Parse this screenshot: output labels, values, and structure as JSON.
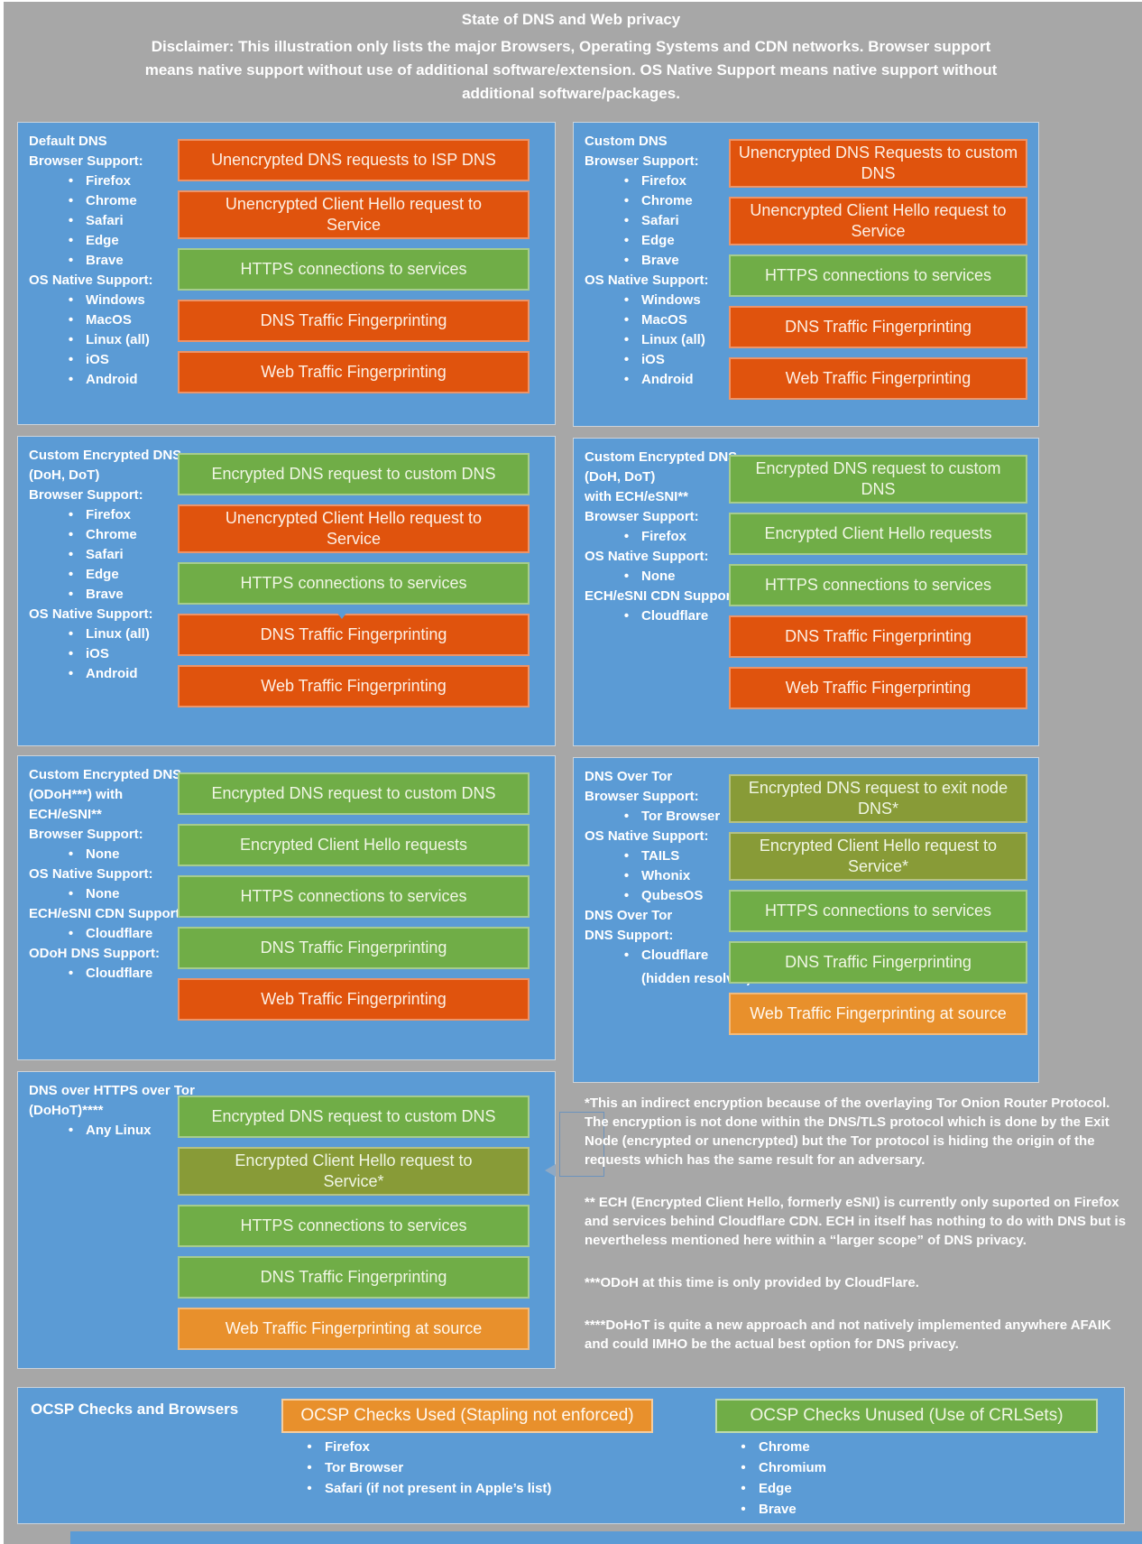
{
  "colors": {
    "background": "#a7a7a7",
    "panel_blue": "#5b9bd5",
    "bar_green": "#70ad47",
    "bar_olive": "#889b37",
    "bar_dark_orange": "#e0530d",
    "bar_light_orange": "#e8902c"
  },
  "header": {
    "title": "State of DNS and Web privacy",
    "disclaimer": "Disclaimer: This illustration only lists the major Browsers, Operating Systems and CDN networks. Browser support means native support without use of additional software/extension. OS Native Support means native support without additional software/packages."
  },
  "panels": [
    {
      "id": "default-dns",
      "left": [
        {
          "style": "h",
          "text": "Default DNS"
        },
        {
          "style": "h",
          "text": "Browser Support:"
        },
        {
          "style": "b",
          "text": "Firefox"
        },
        {
          "style": "b",
          "text": "Chrome"
        },
        {
          "style": "b",
          "text": "Safari"
        },
        {
          "style": "b",
          "text": "Edge"
        },
        {
          "style": "b",
          "text": "Brave"
        },
        {
          "style": "h",
          "text": "OS Native Support:"
        },
        {
          "style": "b",
          "text": "Windows"
        },
        {
          "style": "b",
          "text": "MacOS"
        },
        {
          "style": "b",
          "text": "Linux (all)"
        },
        {
          "style": "b",
          "text": "iOS"
        },
        {
          "style": "b",
          "text": "Android"
        }
      ],
      "bars": [
        {
          "text": "Unencrypted DNS requests to ISP DNS",
          "color": "dark_orange"
        },
        {
          "text": "Unencrypted Client Hello request to\nService",
          "color": "dark_orange"
        },
        {
          "text": "HTTPS connections to services",
          "color": "green"
        },
        {
          "text": "DNS Traffic Fingerprinting",
          "color": "dark_orange"
        },
        {
          "text": "Web Traffic Fingerprinting",
          "color": "dark_orange"
        }
      ]
    },
    {
      "id": "custom-dns",
      "left": [
        {
          "style": "h",
          "text": "Custom DNS"
        },
        {
          "style": "h",
          "text": "Browser Support:"
        },
        {
          "style": "b",
          "text": "Firefox"
        },
        {
          "style": "b",
          "text": "Chrome"
        },
        {
          "style": "b",
          "text": "Safari"
        },
        {
          "style": "b",
          "text": "Edge"
        },
        {
          "style": "b",
          "text": "Brave"
        },
        {
          "style": "h",
          "text": "OS Native Support:"
        },
        {
          "style": "b",
          "text": "Windows"
        },
        {
          "style": "b",
          "text": "MacOS"
        },
        {
          "style": "b",
          "text": "Linux (all)"
        },
        {
          "style": "b",
          "text": "iOS"
        },
        {
          "style": "b",
          "text": "Android"
        }
      ],
      "bars": [
        {
          "text": "Unencrypted DNS Requests to custom\nDNS",
          "color": "dark_orange"
        },
        {
          "text": "Unencrypted Client Hello request to\nService",
          "color": "dark_orange"
        },
        {
          "text": "HTTPS connections to services",
          "color": "green"
        },
        {
          "text": "DNS Traffic Fingerprinting",
          "color": "dark_orange"
        },
        {
          "text": "Web Traffic Fingerprinting",
          "color": "dark_orange"
        }
      ]
    },
    {
      "id": "custom-encrypted-dns-doh-dot",
      "left": [
        {
          "style": "h",
          "text": "Custom Encrypted DNS"
        },
        {
          "style": "h",
          "text": "(DoH, DoT)"
        },
        {
          "style": "h",
          "text": "Browser Support:"
        },
        {
          "style": "b",
          "text": "Firefox"
        },
        {
          "style": "b",
          "text": "Chrome"
        },
        {
          "style": "b",
          "text": "Safari"
        },
        {
          "style": "b",
          "text": "Edge"
        },
        {
          "style": "b",
          "text": "Brave"
        },
        {
          "style": "h",
          "text": "OS Native Support:"
        },
        {
          "style": "b",
          "text": "Linux (all)"
        },
        {
          "style": "b",
          "text": "iOS"
        },
        {
          "style": "b",
          "text": "Android"
        }
      ],
      "bars": [
        {
          "text": "Encrypted DNS request to custom DNS",
          "color": "green"
        },
        {
          "text": "Unencrypted Client Hello request to\nService",
          "color": "dark_orange"
        },
        {
          "text": "HTTPS connections to services",
          "color": "green"
        },
        {
          "text": "DNS Traffic Fingerprinting",
          "color": "dark_orange"
        },
        {
          "text": "Web Traffic Fingerprinting",
          "color": "dark_orange"
        }
      ]
    },
    {
      "id": "custom-encrypted-dns-ech-esni",
      "left": [
        {
          "style": "h",
          "text": "Custom Encrypted DNS"
        },
        {
          "style": "h",
          "text": "(DoH, DoT)"
        },
        {
          "style": "h",
          "text": "with ECH/eSNI**"
        },
        {
          "style": "h",
          "text": "Browser Support:"
        },
        {
          "style": "b",
          "text": "Firefox"
        },
        {
          "style": "h",
          "text": "OS Native Support:"
        },
        {
          "style": "b",
          "text": "None"
        },
        {
          "style": "h",
          "text": "ECH/eSNI CDN Support:"
        },
        {
          "style": "b",
          "text": "Cloudflare"
        }
      ],
      "bars": [
        {
          "text": "Encrypted DNS request to custom DNS",
          "color": "green"
        },
        {
          "text": "Encrypted Client Hello requests",
          "color": "green"
        },
        {
          "text": "HTTPS connections to services",
          "color": "green"
        },
        {
          "text": "DNS Traffic Fingerprinting",
          "color": "dark_orange"
        },
        {
          "text": "Web Traffic Fingerprinting",
          "color": "dark_orange"
        }
      ]
    },
    {
      "id": "custom-encrypted-dns-odoh",
      "left": [
        {
          "style": "h",
          "text": "Custom Encrypted DNS"
        },
        {
          "style": "h",
          "text": "(ODoH***) with"
        },
        {
          "style": "h",
          "text": "ECH/eSNI**"
        },
        {
          "style": "h",
          "text": "Browser Support:"
        },
        {
          "style": "b",
          "text": "None"
        },
        {
          "style": "h",
          "text": "OS Native Support:"
        },
        {
          "style": "b",
          "text": "None"
        },
        {
          "style": "h",
          "text": "ECH/eSNI CDN Support:"
        },
        {
          "style": "b",
          "text": "Cloudflare"
        },
        {
          "style": "h",
          "text": "ODoH DNS Support:"
        },
        {
          "style": "b",
          "text": "Cloudflare"
        }
      ],
      "bars": [
        {
          "text": "Encrypted DNS request to custom DNS",
          "color": "green"
        },
        {
          "text": "Encrypted Client Hello requests",
          "color": "green"
        },
        {
          "text": "HTTPS connections to services",
          "color": "green"
        },
        {
          "text": "DNS Traffic Fingerprinting",
          "color": "green"
        },
        {
          "text": "Web Traffic Fingerprinting",
          "color": "dark_orange"
        }
      ]
    },
    {
      "id": "dns-over-tor",
      "left": [
        {
          "style": "h",
          "text": "DNS Over Tor"
        },
        {
          "style": "h",
          "text": "Browser Support:"
        },
        {
          "style": "b",
          "text": "Tor Browser"
        },
        {
          "style": "h",
          "text": "OS Native Support:"
        },
        {
          "style": "b",
          "text": "TAILS"
        },
        {
          "style": "b",
          "text": "Whonix"
        },
        {
          "style": "b",
          "text": "QubesOS"
        },
        {
          "style": "h",
          "text": "DNS Over Tor"
        },
        {
          "style": "h",
          "text": "DNS Support:"
        },
        {
          "style": "b",
          "text": "Cloudflare"
        },
        {
          "style": "s",
          "text": "(hidden resolver)"
        }
      ],
      "bars": [
        {
          "text": "Encrypted DNS request to exit node\nDNS*",
          "color": "olive"
        },
        {
          "text": "Encrypted Client Hello request to\nService*",
          "color": "olive"
        },
        {
          "text": "HTTPS connections to services",
          "color": "green"
        },
        {
          "text": "DNS Traffic Fingerprinting",
          "color": "green"
        },
        {
          "text": "Web Traffic Fingerprinting at source",
          "color": "light_orange"
        }
      ]
    },
    {
      "id": "dohot",
      "left": [
        {
          "style": "h",
          "text": "DNS over HTTPS over Tor"
        },
        {
          "style": "h",
          "text": "(DoHoT)****"
        },
        {
          "style": "b",
          "text": "Any Linux"
        }
      ],
      "bars": [
        {
          "text": "Encrypted DNS request to custom DNS",
          "color": "green"
        },
        {
          "text": "Encrypted Client Hello request to\nService*",
          "color": "olive"
        },
        {
          "text": "HTTPS connections to services",
          "color": "green"
        },
        {
          "text": "DNS Traffic Fingerprinting",
          "color": "green"
        },
        {
          "text": "Web Traffic Fingerprinting at source",
          "color": "light_orange"
        }
      ]
    }
  ],
  "footnotes": [
    "*This an indirect encryption because of the overlaying Tor Onion Router Protocol. The encryption is not done within the DNS/TLS protocol which is done by the Exit Node (encrypted or unencrypted) but the Tor protocol is hiding the origin of the requests which has the same result for an adversary.",
    "** ECH (Encrypted Client Hello, formerly eSNI) is currently only suported on Firefox and services behind Cloudflare CDN. ECH in itself has nothing to do with DNS but is nevertheless mentioned here within a “larger scope” of DNS privacy.",
    "***ODoH at this time is only provided by CloudFlare.",
    "****DoHoT is quite a new approach and not natively implemented anywhere AFAIK and could IMHO be the actual best option for DNS privacy."
  ],
  "ocsp": {
    "title": "OCSP Checks and Browsers",
    "used": {
      "header": "OCSP Checks Used (Stapling not enforced)",
      "items": [
        "Firefox",
        "Tor Browser",
        "Safari (if not present in Apple’s list)"
      ]
    },
    "unused": {
      "header": "OCSP Checks Unused (Use of CRLSets)",
      "items": [
        "Chrome",
        "Chromium",
        "Edge",
        "Brave"
      ]
    }
  }
}
